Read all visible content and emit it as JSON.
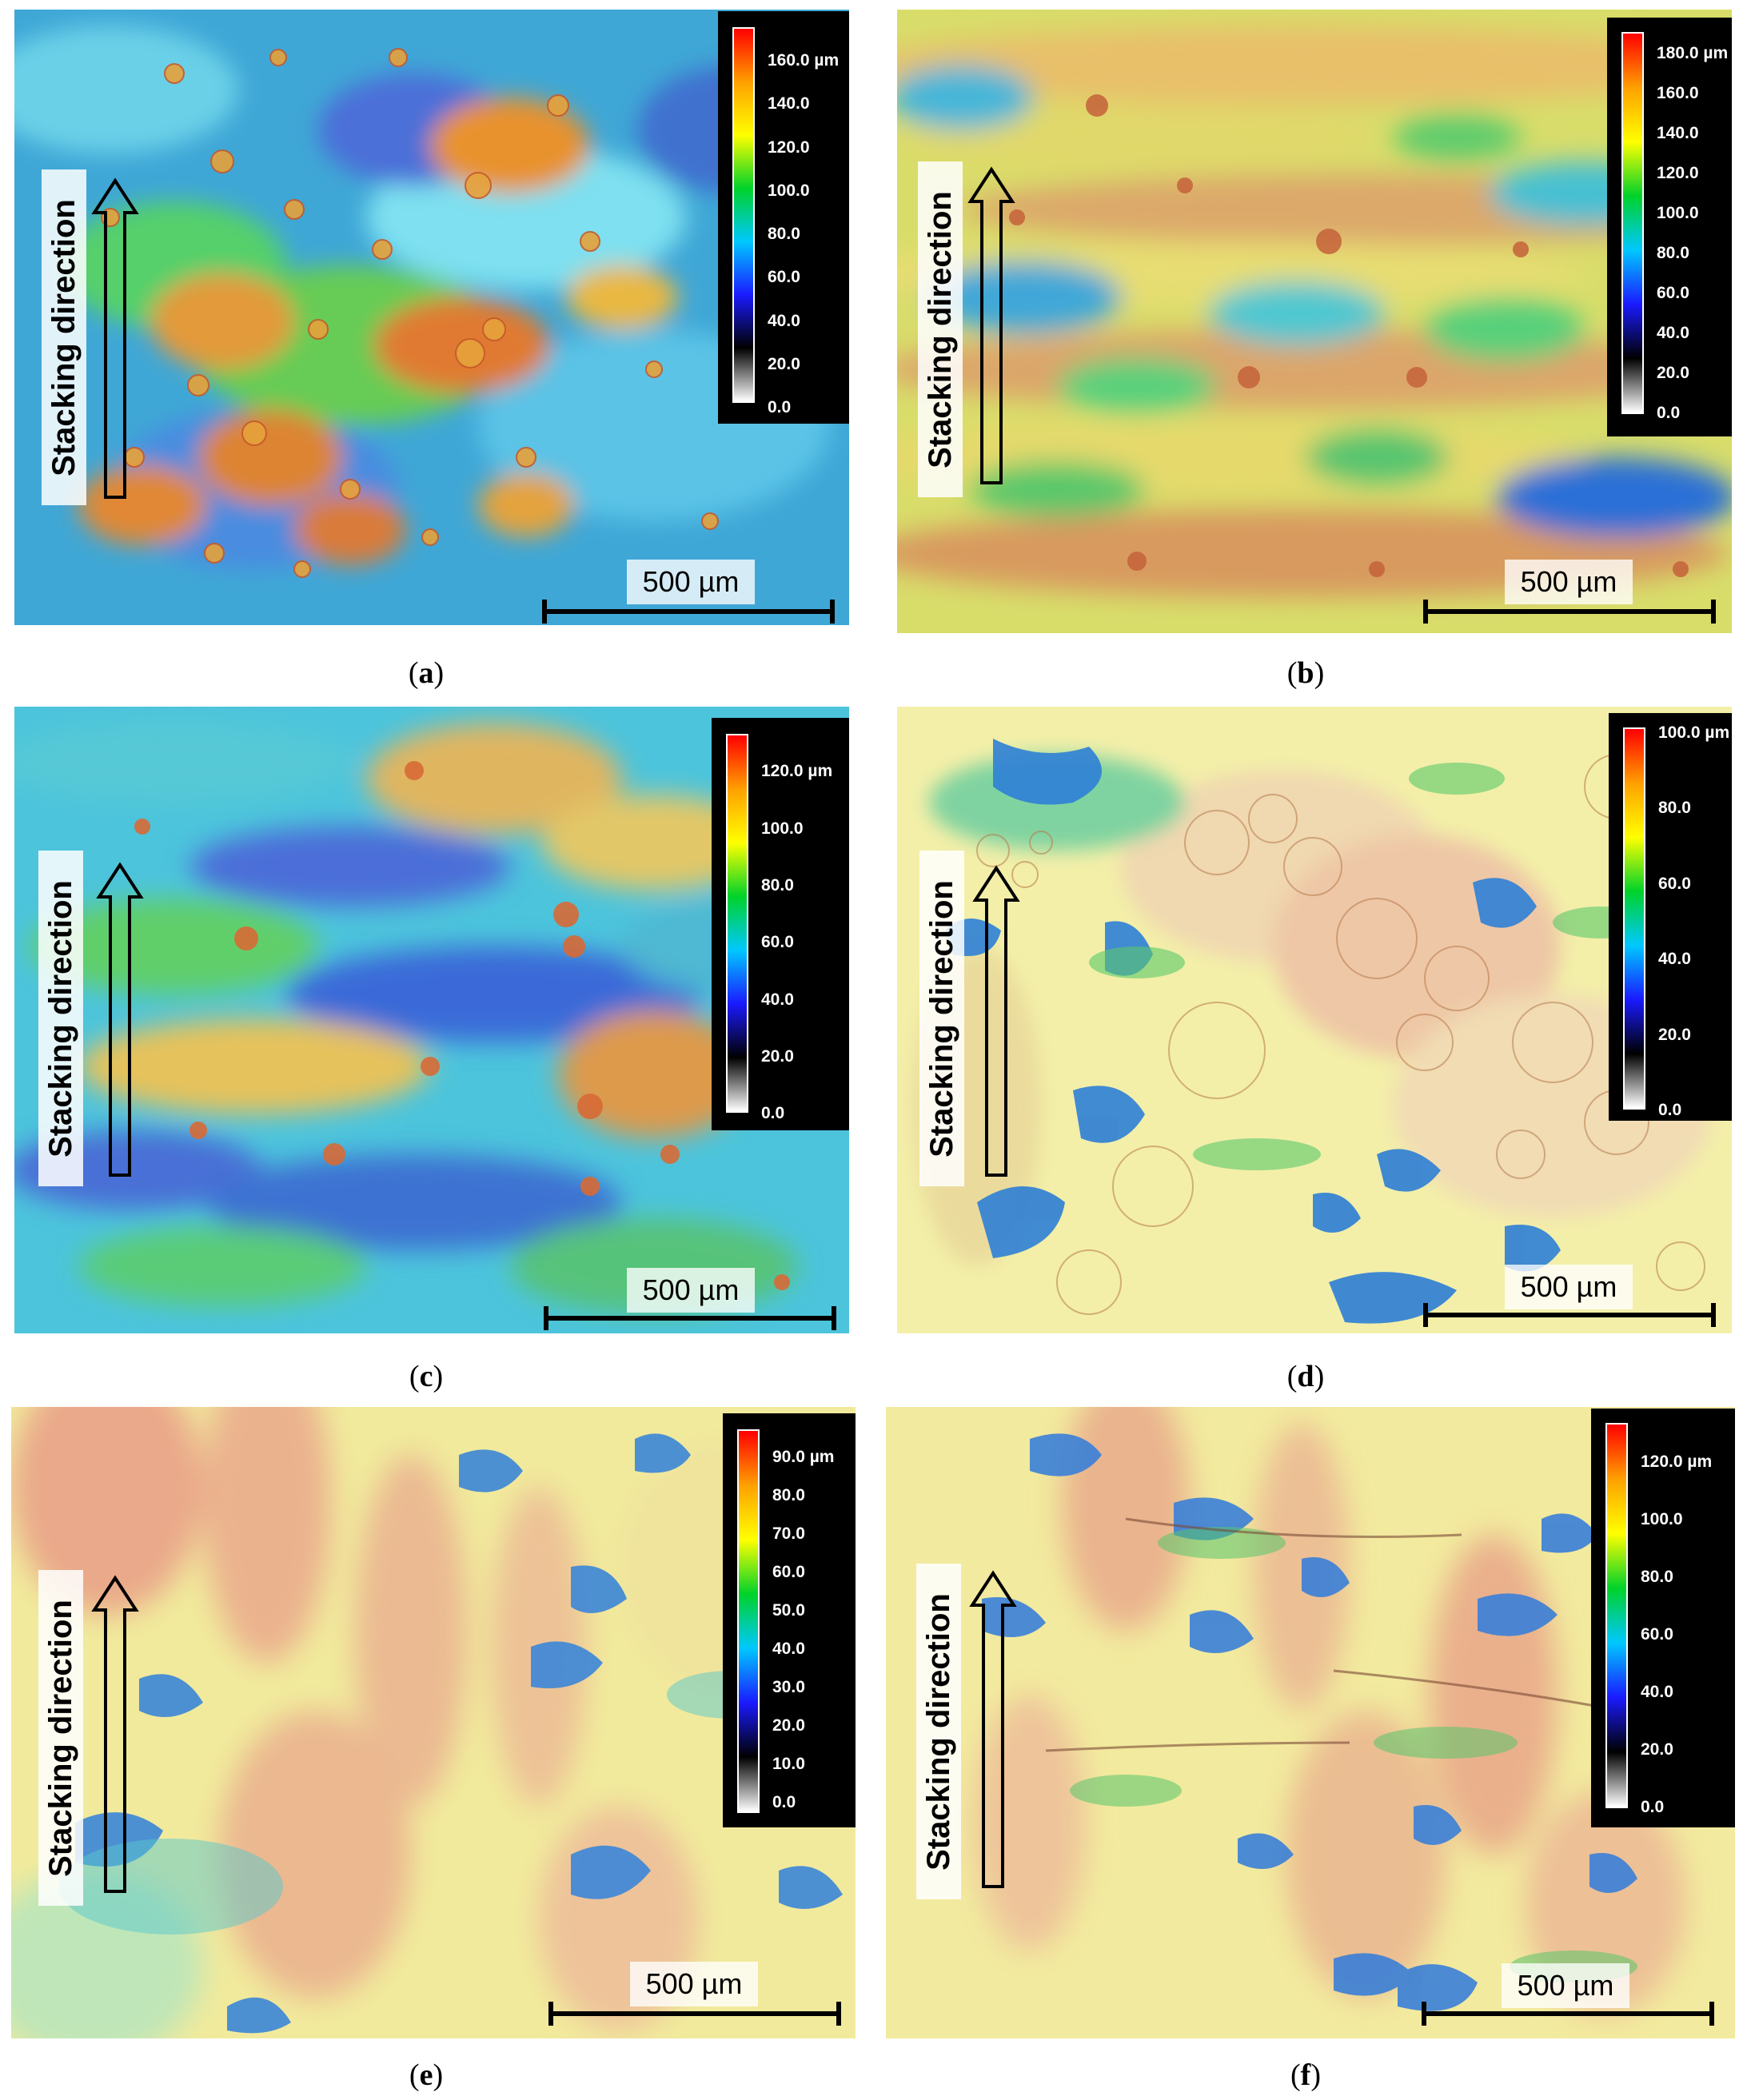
{
  "panels": [
    {
      "id": "a",
      "caption_letter": "a",
      "stacking_label": "Stacking direction",
      "scale_label": "500 µm",
      "colorbar_unit_label": "160.0 µm",
      "colorbar_ticks": [
        "160.0 µm",
        "140.0",
        "120.0",
        "100.0",
        "80.0",
        "60.0",
        "40.0",
        "20.0",
        "0.0"
      ],
      "surface_palette": "rainbow-high-relief"
    },
    {
      "id": "b",
      "caption_letter": "b",
      "stacking_label": "Stacking direction",
      "scale_label": "500 µm",
      "colorbar_ticks": [
        "180.0 µm",
        "160.0",
        "140.0",
        "120.0",
        "100.0",
        "80.0",
        "60.0",
        "40.0",
        "20.0",
        "0.0"
      ],
      "surface_palette": "rainbow-banded"
    },
    {
      "id": "c",
      "caption_letter": "c",
      "stacking_label": "Stacking direction",
      "scale_label": "500 µm",
      "colorbar_ticks": [
        "120.0 µm",
        "100.0",
        "80.0",
        "60.0",
        "40.0",
        "20.0",
        "0.0"
      ],
      "surface_palette": "rainbow-mixed"
    },
    {
      "id": "d",
      "caption_letter": "d",
      "stacking_label": "Stacking direction",
      "scale_label": "500 µm",
      "colorbar_ticks": [
        "100.0 µm",
        "80.0",
        "60.0",
        "40.0",
        "20.0",
        "0.0"
      ],
      "surface_palette": "pale-cells"
    },
    {
      "id": "e",
      "caption_letter": "e",
      "stacking_label": "Stacking direction",
      "scale_label": "500 µm",
      "colorbar_ticks": [
        "90.0 µm",
        "80.0",
        "70.0",
        "60.0",
        "50.0",
        "40.0",
        "30.0",
        "20.0",
        "10.0",
        "0.0"
      ],
      "surface_palette": "pale-columnar"
    },
    {
      "id": "f",
      "caption_letter": "f",
      "stacking_label": "Stacking direction",
      "scale_label": "500 µm",
      "colorbar_ticks": [
        "120.0 µm",
        "100.0",
        "80.0",
        "60.0",
        "40.0",
        "20.0",
        "0.0"
      ],
      "surface_palette": "pale-columnar"
    }
  ],
  "colors": {
    "gradient_stops": [
      "#ffffff",
      "#000000",
      "#1a1aff",
      "#00c8ff",
      "#00d22a",
      "#ffff00",
      "#ffa000",
      "#ff0000"
    ]
  }
}
